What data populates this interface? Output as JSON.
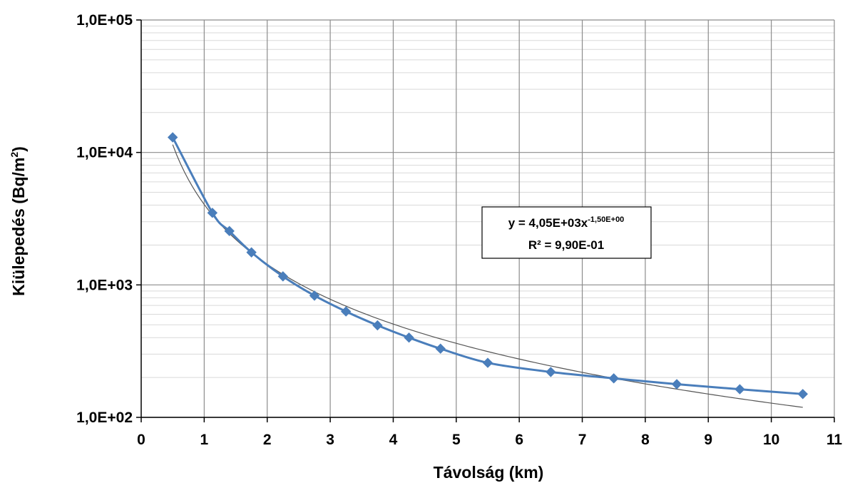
{
  "chart_data": {
    "type": "scatter",
    "title": "",
    "xlabel": "Távolság (km)",
    "ylabel": "Kiülepedés (Bq/m",
    "ylabel_sup": "2",
    "ylabel_tail": ")",
    "xlim": [
      0,
      11
    ],
    "ylim": [
      100,
      100000
    ],
    "yscale": "log",
    "grid": true,
    "x_tick_labels": [
      "0",
      "1",
      "2",
      "3",
      "4",
      "5",
      "6",
      "7",
      "8",
      "9",
      "10",
      "11"
    ],
    "y_tick_values": [
      100,
      1000,
      10000,
      100000
    ],
    "y_tick_labels": [
      "1,0E+02",
      "1,0E+03",
      "1,0E+04",
      "1,0E+05"
    ],
    "series": [
      {
        "color": "#4a7ebb",
        "marker": "diamond",
        "x": [
          0.5,
          1.13,
          1.4,
          1.75,
          2.25,
          2.75,
          3.25,
          3.75,
          4.25,
          4.75,
          5.5,
          6.5,
          7.5,
          8.5,
          9.5,
          10.5
        ],
        "y": [
          13000,
          3500,
          2550,
          1760,
          1160,
          830,
          630,
          495,
          400,
          330,
          258,
          220,
          197,
          178,
          163,
          150
        ]
      }
    ],
    "trendline": {
      "type": "power",
      "a": 4050,
      "b": -1.5,
      "x_range": [
        0.5,
        10.5
      ],
      "color": "#555555"
    },
    "annotation": {
      "line1_main": "y = 4,05E+03x",
      "line1_sup": "-1,50E+00",
      "line2": "R² = 9,90E-01"
    }
  }
}
